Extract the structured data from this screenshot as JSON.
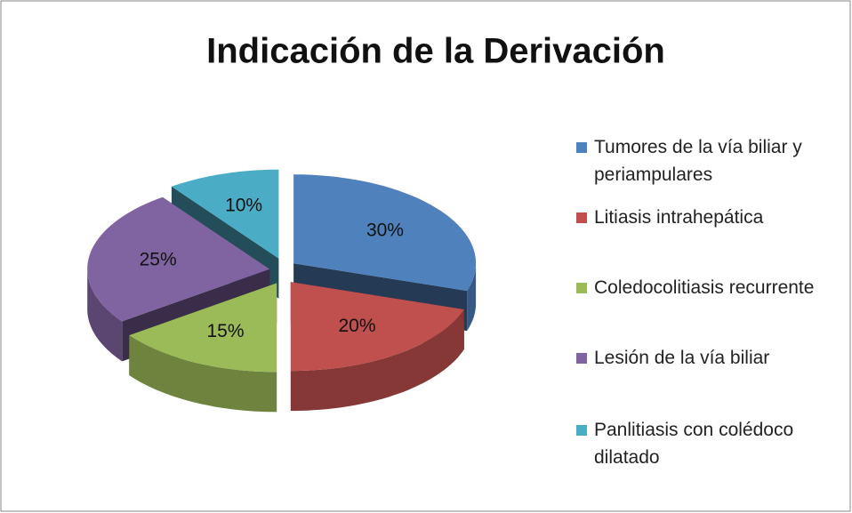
{
  "chart_data": {
    "type": "pie3d",
    "title": "Indicación de la Derivación",
    "categories": [
      "Tumores de la vía biliar y periampulares",
      "Litiasis intrahepática",
      "Coledocolitiasis recurrente",
      "Lesión de la vía biliar",
      "Panlitiasis con colédoco dilatado"
    ],
    "values": [
      30,
      20,
      15,
      25,
      10
    ],
    "value_labels": [
      "30%",
      "20%",
      "15%",
      "25%",
      "10%"
    ],
    "colors": [
      "#4f81bd",
      "#c0504d",
      "#9bbb59",
      "#8064a2",
      "#4bacc6"
    ],
    "legend": "right"
  }
}
